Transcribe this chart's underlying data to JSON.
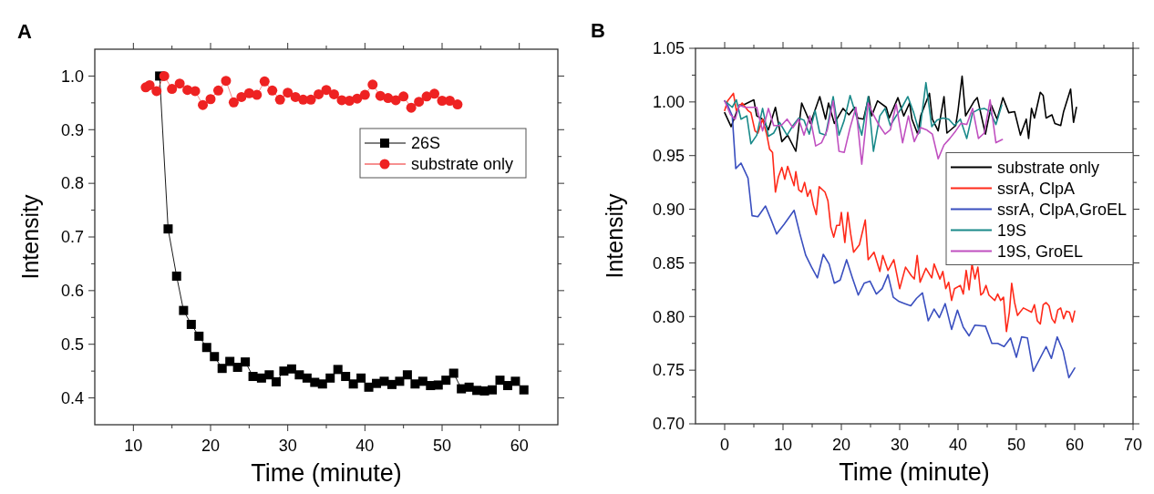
{
  "chart_data": [
    {
      "type": "line",
      "title": "A",
      "xlabel": "Time (minute)",
      "ylabel": "Intensity",
      "xlim": [
        5,
        65
      ],
      "ylim": [
        0.35,
        1.05
      ],
      "xticks": [
        10,
        {
          "value": 15,
          "label": null
        },
        20,
        {
          "value": 25,
          "label": null
        },
        30,
        {
          "value": 35,
          "label": null
        },
        40,
        {
          "value": 45,
          "label": null
        },
        50,
        {
          "value": 55,
          "label": null
        },
        60
      ],
      "yticks": [
        0.4,
        {
          "value": 0.45,
          "label": null
        },
        0.5,
        {
          "value": 0.55,
          "label": null
        },
        0.6,
        {
          "value": 0.65,
          "label": null
        },
        0.7,
        {
          "value": 0.75,
          "label": null
        },
        0.8,
        {
          "value": 0.85,
          "label": null
        },
        0.9,
        {
          "value": 0.95,
          "label": null
        },
        {
          "value": 1,
          "label": "1.0"
        }
      ],
      "legend": "top right",
      "grid": false,
      "series": [
        {
          "name": "26S",
          "color": "#000000",
          "marker": "square",
          "x": [
            13.4,
            14.5,
            15.6,
            16.5,
            17.5,
            18.5,
            19.5,
            20.5,
            21.5,
            22.5,
            23.5,
            24.5,
            25.5,
            26.6,
            27.6,
            28.5,
            29.5,
            30.5,
            31.5,
            32.5,
            33.5,
            34.5,
            35.5,
            36.5,
            37.5,
            38.5,
            39.5,
            40.5,
            41.5,
            42.5,
            43.5,
            44.5,
            45.5,
            46.5,
            47.5,
            48.5,
            49.5,
            50.5,
            51.5,
            52.5,
            53.5,
            54.5,
            55.5,
            56.5,
            57.5,
            58.5,
            59.5,
            60.6
          ],
          "values": [
            1.0,
            0.715,
            0.627,
            0.563,
            0.537,
            0.515,
            0.494,
            0.477,
            0.455,
            0.468,
            0.457,
            0.467,
            0.44,
            0.437,
            0.443,
            0.43,
            0.45,
            0.454,
            0.443,
            0.437,
            0.429,
            0.426,
            0.437,
            0.453,
            0.44,
            0.426,
            0.437,
            0.42,
            0.427,
            0.431,
            0.425,
            0.431,
            0.443,
            0.426,
            0.431,
            0.423,
            0.424,
            0.433,
            0.446,
            0.417,
            0.42,
            0.414,
            0.413,
            0.415,
            0.433,
            0.423,
            0.431,
            0.415
          ]
        },
        {
          "name": "substrate only",
          "color": "#ee2222",
          "marker": "circle",
          "x": [
            11.6,
            12.1,
            13,
            14,
            15,
            16,
            17,
            18,
            19,
            20,
            21,
            22,
            23,
            24,
            25,
            26,
            27,
            28,
            29,
            30,
            31,
            32,
            33,
            34,
            35,
            36,
            37,
            38,
            39,
            40,
            41,
            42,
            43,
            44,
            45,
            46,
            47,
            48,
            49,
            50,
            51,
            52
          ],
          "values": [
            0.979,
            0.983,
            0.972,
            1.0,
            0.976,
            0.986,
            0.974,
            0.972,
            0.946,
            0.957,
            0.973,
            0.991,
            0.951,
            0.961,
            0.968,
            0.965,
            0.99,
            0.973,
            0.956,
            0.969,
            0.961,
            0.956,
            0.956,
            0.966,
            0.974,
            0.966,
            0.955,
            0.954,
            0.958,
            0.965,
            0.984,
            0.963,
            0.959,
            0.955,
            0.962,
            0.941,
            0.952,
            0.962,
            0.967,
            0.954,
            0.954,
            0.947
          ]
        }
      ]
    },
    {
      "type": "line",
      "title": "B",
      "xlabel": "Time (minute)",
      "ylabel": "Intensity",
      "xlim": [
        -5,
        70
      ],
      "ylim": [
        0.7,
        1.05
      ],
      "xticks": [
        0,
        {
          "value": 5,
          "label": null
        },
        10,
        {
          "value": 15,
          "label": null
        },
        20,
        {
          "value": 25,
          "label": null
        },
        30,
        {
          "value": 35,
          "label": null
        },
        40,
        {
          "value": 45,
          "label": null
        },
        50,
        {
          "value": 55,
          "label": null
        },
        60,
        {
          "value": 65,
          "label": null
        },
        70
      ],
      "yticks": [
        {
          "value": 0.7,
          "label": "0.70"
        },
        {
          "value": 0.725,
          "label": null
        },
        0.75,
        {
          "value": 0.775,
          "label": null
        },
        {
          "value": 0.8,
          "label": "0.80"
        },
        {
          "value": 0.825,
          "label": null
        },
        0.85,
        {
          "value": 0.875,
          "label": null
        },
        {
          "value": 0.9,
          "label": "0.90"
        },
        {
          "value": 0.925,
          "label": null
        },
        0.95,
        {
          "value": 0.975,
          "label": null
        },
        {
          "value": 1,
          "label": "1.00"
        },
        {
          "value": 1.025,
          "label": null
        },
        1.05
      ],
      "legend": "right",
      "grid": false,
      "series": [
        {
          "name": "substrate only",
          "color": "#000000",
          "marker": "none",
          "x": [
            0,
            1.1,
            2.5,
            3.5,
            5,
            5.5,
            6.5,
            7.5,
            8.7,
            9.8,
            10.8,
            12.2,
            13.2,
            14.7,
            16.3,
            17.3,
            17.8,
            18.8,
            20.3,
            21.3,
            22.3,
            22.8,
            23.8,
            24.7,
            25.2,
            26.2,
            27.7,
            28.2,
            29.7,
            30.7,
            31.7,
            32.1,
            33.1,
            33.6,
            35.1,
            35.6,
            36.6,
            37.6,
            38.1,
            39.6,
            40,
            40.7,
            41.3,
            42.8,
            43.3,
            44.7,
            45.7,
            46.7,
            47.7,
            48.7,
            49.7,
            50.7,
            51.7,
            52.1,
            52.6,
            53.1,
            54.1,
            54.6,
            55.1,
            56.1,
            56.6,
            57.6,
            58.1,
            59.3,
            59.8,
            60.3
          ],
          "values": [
            0.99,
            0.977,
            0.997,
            0.998,
            1.002,
            0.987,
            0.984,
            0.974,
            0.995,
            0.963,
            0.969,
            0.954,
            0.999,
            0.98,
            1.005,
            0.984,
            0.999,
            0.98,
            0.994,
            0.988,
            0.995,
            0.985,
            0.984,
            1.005,
            0.987,
            1.001,
            0.995,
            0.985,
            1.004,
            0.987,
            0.999,
            0.984,
            0.97,
            0.987,
            1.008,
            0.984,
            0.973,
            1.005,
            0.971,
            0.978,
            0.992,
            1.024,
            0.987,
            1.001,
            1.004,
            0.97,
            0.997,
            0.984,
            1.004,
            0.99,
            0.991,
            0.969,
            0.984,
            0.966,
            0.994,
            0.985,
            1.009,
            1.006,
            0.985,
            0.988,
            0.98,
            0.978,
            0.991,
            1.012,
            0.981,
            0.995
          ]
        },
        {
          "name": "ssrA, ClpA",
          "color": "#ff2a1a",
          "marker": "none",
          "x": [
            0,
            0.5,
            1.5,
            2,
            3,
            4,
            4.5,
            5.2,
            5.7,
            6.5,
            7.2,
            7.7,
            8.2,
            8.7,
            9.2,
            9.8,
            10.3,
            10.8,
            11.4,
            11.9,
            12.2,
            12.7,
            13.2,
            13.7,
            14.2,
            14.7,
            15.2,
            15.7,
            16.2,
            17.2,
            17.7,
            18.2,
            18.7,
            19.2,
            19.7,
            20,
            20.6,
            21.1,
            21.6,
            22.1,
            23.1,
            24.1,
            24.6,
            25.6,
            26.6,
            27.1,
            28,
            29,
            30,
            31,
            32,
            32.5,
            33,
            33.5,
            34.5,
            35.5,
            35.9,
            36.9,
            37.4,
            37.9,
            38.4,
            38.9,
            39.4,
            40.4,
            40.9,
            41.4,
            41.9,
            42.4,
            42.9,
            43.4,
            43.9,
            44.3,
            44.8,
            45.3,
            46.3,
            46.8,
            47.3,
            47.8,
            48.3,
            48.8,
            49.2,
            49.7,
            50.2,
            51.2,
            52.6,
            53.1,
            53.6,
            54.1,
            54.6,
            55.1,
            55.6,
            56.1,
            56.6,
            57.1,
            57.6,
            58.1,
            58.6,
            59.1,
            59.6,
            60
          ],
          "values": [
            0.992,
            1.001,
            1.008,
            0.992,
            0.999,
            0.992,
            0.99,
            0.973,
            0.971,
            0.984,
            0.97,
            0.956,
            0.953,
            0.916,
            0.93,
            0.939,
            0.928,
            0.94,
            0.93,
            0.922,
            0.935,
            0.918,
            0.916,
            0.925,
            0.912,
            0.918,
            0.904,
            0.895,
            0.921,
            0.916,
            0.908,
            0.883,
            0.874,
            0.885,
            0.885,
            0.897,
            0.869,
            0.897,
            0.877,
            0.86,
            0.867,
            0.89,
            0.853,
            0.86,
            0.842,
            0.857,
            0.843,
            0.853,
            0.826,
            0.846,
            0.838,
            0.835,
            0.857,
            0.832,
            0.845,
            0.836,
            0.849,
            0.835,
            0.842,
            0.826,
            0.832,
            0.815,
            0.826,
            0.829,
            0.821,
            0.843,
            0.825,
            0.849,
            0.835,
            0.846,
            0.82,
            0.822,
            0.829,
            0.82,
            0.815,
            0.821,
            0.815,
            0.818,
            0.786,
            0.804,
            0.831,
            0.813,
            0.801,
            0.808,
            0.804,
            0.811,
            0.796,
            0.793,
            0.811,
            0.813,
            0.81,
            0.798,
            0.794,
            0.806,
            0.808,
            0.798,
            0.805,
            0.804,
            0.795,
            0.805
          ]
        },
        {
          "name": "ssrA, ClpA,GroEL",
          "color": "#3a4fbf",
          "marker": "none",
          "x": [
            0,
            0.5,
            1.3,
            1.9,
            2.8,
            4,
            4.7,
            5.7,
            7,
            7.9,
            8.9,
            10.2,
            11.9,
            12.9,
            13.9,
            14.9,
            15.9,
            16.9,
            17.9,
            18.8,
            19.8,
            20.9,
            21.9,
            22.9,
            23.9,
            24.9,
            26,
            27,
            28,
            28.9,
            29.9,
            30.9,
            31.9,
            32.9,
            33.9,
            34.9,
            35.9,
            36.8,
            37.8,
            38.9,
            39.9,
            40.9,
            41.9,
            42.9,
            44.7,
            45.8,
            46.8,
            47.9,
            49,
            50,
            50.9,
            51.9,
            52.9,
            55.1,
            56,
            57,
            58,
            59,
            60
          ],
          "values": [
            1.001,
            0.997,
            0.987,
            0.938,
            0.943,
            0.929,
            0.894,
            0.893,
            0.903,
            0.891,
            0.877,
            0.886,
            0.899,
            0.877,
            0.857,
            0.846,
            0.836,
            0.858,
            0.849,
            0.831,
            0.834,
            0.853,
            0.836,
            0.82,
            0.831,
            0.833,
            0.821,
            0.826,
            0.839,
            0.818,
            0.814,
            0.812,
            0.81,
            0.817,
            0.822,
            0.796,
            0.807,
            0.799,
            0.812,
            0.788,
            0.806,
            0.79,
            0.782,
            0.792,
            0.791,
            0.775,
            0.775,
            0.772,
            0.78,
            0.762,
            0.781,
            0.78,
            0.749,
            0.772,
            0.761,
            0.781,
            0.768,
            0.743,
            0.752
          ]
        },
        {
          "name": "19S",
          "color": "#1a8a8a",
          "marker": "none",
          "x": [
            0,
            1.3,
            2,
            2.8,
            3.8,
            4.5,
            5.5,
            6.5,
            7.5,
            8.4,
            9.4,
            10.7,
            11.7,
            12.7,
            13.6,
            14.5,
            15.5,
            16.3,
            17.3,
            18.6,
            19.6,
            20.5,
            21.5,
            22.5,
            23.5,
            24.6,
            25.5,
            26.6,
            27.5,
            28.4,
            29.4,
            30.4,
            31.4,
            32.4,
            33.4,
            34.5,
            35.5,
            36.4,
            37.4,
            38.4,
            39.4,
            40.4,
            41.5,
            42.5,
            43.5,
            44.5,
            45.5,
            46.5,
            47.5
          ],
          "values": [
            1.001,
            0.995,
            1.002,
            0.984,
            0.987,
            0.961,
            0.969,
            0.994,
            0.968,
            0.971,
            0.981,
            0.969,
            0.978,
            0.985,
            0.983,
            0.97,
            0.992,
            0.971,
            0.969,
            1.005,
            0.969,
            0.983,
            1.006,
            0.988,
            0.969,
            1.005,
            0.954,
            0.987,
            0.994,
            0.978,
            0.987,
            0.995,
            1.005,
            0.99,
            0.971,
            1.018,
            0.977,
            0.983,
            0.985,
            0.984,
            0.978,
            0.984,
            0.966,
            0.99,
            0.993,
            0.994,
            0.991,
            0.979,
            0.997
          ]
        },
        {
          "name": "19S, GroEL",
          "color": "#c050c0",
          "marker": "none",
          "x": [
            0,
            1,
            1.8,
            2.5,
            3.5,
            4.5,
            5.5,
            6.5,
            7.5,
            8.4,
            9.7,
            10.7,
            11.7,
            12.7,
            13.6,
            14.6,
            15.6,
            16.6,
            17.6,
            18.6,
            19.6,
            20.5,
            21.5,
            22.5,
            23.5,
            24.6,
            25.5,
            26.5,
            27.5,
            28.4,
            29.4,
            30.5,
            31.5,
            32.5,
            33.6,
            34.6,
            35.6,
            36.6,
            37.6,
            38.6,
            39.6,
            40.5,
            41.5,
            42.5,
            43.5,
            44.5,
            45.5,
            46.5,
            47.6
          ],
          "values": [
            1.001,
            0.988,
            0.984,
            0.997,
            0.995,
            0.995,
            0.995,
            0.973,
            0.994,
            0.978,
            0.978,
            0.984,
            0.976,
            0.984,
            0.969,
            0.987,
            0.959,
            0.962,
            0.974,
            1.001,
            0.954,
            0.953,
            0.976,
            0.995,
            0.942,
            0.999,
            0.988,
            0.978,
            0.97,
            0.974,
            0.998,
            0.962,
            0.987,
            0.963,
            0.976,
            0.974,
            0.97,
            0.947,
            0.96,
            0.966,
            0.973,
            0.98,
            0.979,
            0.994,
            0.966,
            0.971,
            1.002,
            0.962,
            0.965
          ]
        }
      ]
    }
  ]
}
